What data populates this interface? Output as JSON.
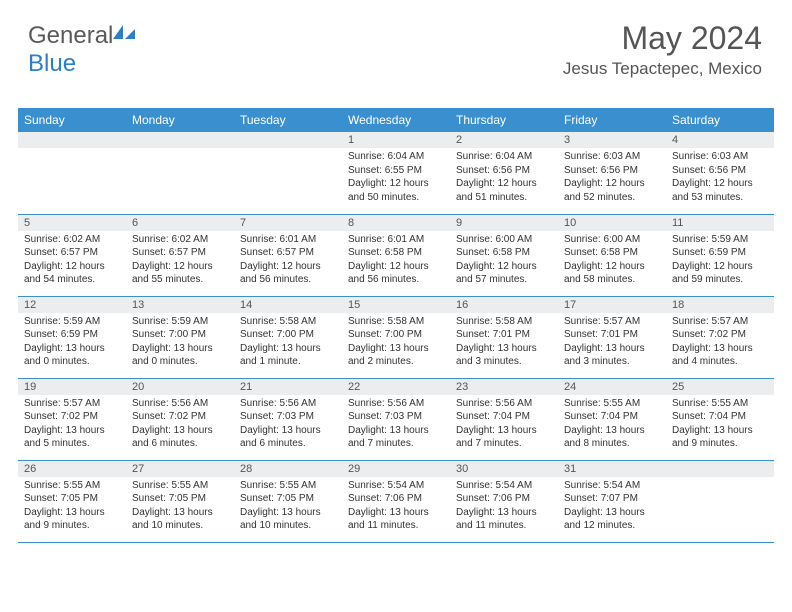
{
  "brand": {
    "part1": "General",
    "part2": "Blue"
  },
  "header": {
    "month_title": "May 2024",
    "location": "Jesus Tepactepec, Mexico"
  },
  "colors": {
    "header_bg": "#3a8fce",
    "header_text": "#ffffff",
    "daynum_bg": "#ebedef",
    "border": "#3a8fce",
    "brand_gray": "#5a5a5a",
    "brand_blue": "#2d7fc1",
    "body_text": "#333333"
  },
  "day_labels": [
    "Sunday",
    "Monday",
    "Tuesday",
    "Wednesday",
    "Thursday",
    "Friday",
    "Saturday"
  ],
  "weeks": [
    [
      null,
      null,
      null,
      {
        "n": "1",
        "sr": "6:04 AM",
        "ss": "6:55 PM",
        "dl": "12 hours and 50 minutes."
      },
      {
        "n": "2",
        "sr": "6:04 AM",
        "ss": "6:56 PM",
        "dl": "12 hours and 51 minutes."
      },
      {
        "n": "3",
        "sr": "6:03 AM",
        "ss": "6:56 PM",
        "dl": "12 hours and 52 minutes."
      },
      {
        "n": "4",
        "sr": "6:03 AM",
        "ss": "6:56 PM",
        "dl": "12 hours and 53 minutes."
      }
    ],
    [
      {
        "n": "5",
        "sr": "6:02 AM",
        "ss": "6:57 PM",
        "dl": "12 hours and 54 minutes."
      },
      {
        "n": "6",
        "sr": "6:02 AM",
        "ss": "6:57 PM",
        "dl": "12 hours and 55 minutes."
      },
      {
        "n": "7",
        "sr": "6:01 AM",
        "ss": "6:57 PM",
        "dl": "12 hours and 56 minutes."
      },
      {
        "n": "8",
        "sr": "6:01 AM",
        "ss": "6:58 PM",
        "dl": "12 hours and 56 minutes."
      },
      {
        "n": "9",
        "sr": "6:00 AM",
        "ss": "6:58 PM",
        "dl": "12 hours and 57 minutes."
      },
      {
        "n": "10",
        "sr": "6:00 AM",
        "ss": "6:58 PM",
        "dl": "12 hours and 58 minutes."
      },
      {
        "n": "11",
        "sr": "5:59 AM",
        "ss": "6:59 PM",
        "dl": "12 hours and 59 minutes."
      }
    ],
    [
      {
        "n": "12",
        "sr": "5:59 AM",
        "ss": "6:59 PM",
        "dl": "13 hours and 0 minutes."
      },
      {
        "n": "13",
        "sr": "5:59 AM",
        "ss": "7:00 PM",
        "dl": "13 hours and 0 minutes."
      },
      {
        "n": "14",
        "sr": "5:58 AM",
        "ss": "7:00 PM",
        "dl": "13 hours and 1 minute."
      },
      {
        "n": "15",
        "sr": "5:58 AM",
        "ss": "7:00 PM",
        "dl": "13 hours and 2 minutes."
      },
      {
        "n": "16",
        "sr": "5:58 AM",
        "ss": "7:01 PM",
        "dl": "13 hours and 3 minutes."
      },
      {
        "n": "17",
        "sr": "5:57 AM",
        "ss": "7:01 PM",
        "dl": "13 hours and 3 minutes."
      },
      {
        "n": "18",
        "sr": "5:57 AM",
        "ss": "7:02 PM",
        "dl": "13 hours and 4 minutes."
      }
    ],
    [
      {
        "n": "19",
        "sr": "5:57 AM",
        "ss": "7:02 PM",
        "dl": "13 hours and 5 minutes."
      },
      {
        "n": "20",
        "sr": "5:56 AM",
        "ss": "7:02 PM",
        "dl": "13 hours and 6 minutes."
      },
      {
        "n": "21",
        "sr": "5:56 AM",
        "ss": "7:03 PM",
        "dl": "13 hours and 6 minutes."
      },
      {
        "n": "22",
        "sr": "5:56 AM",
        "ss": "7:03 PM",
        "dl": "13 hours and 7 minutes."
      },
      {
        "n": "23",
        "sr": "5:56 AM",
        "ss": "7:04 PM",
        "dl": "13 hours and 7 minutes."
      },
      {
        "n": "24",
        "sr": "5:55 AM",
        "ss": "7:04 PM",
        "dl": "13 hours and 8 minutes."
      },
      {
        "n": "25",
        "sr": "5:55 AM",
        "ss": "7:04 PM",
        "dl": "13 hours and 9 minutes."
      }
    ],
    [
      {
        "n": "26",
        "sr": "5:55 AM",
        "ss": "7:05 PM",
        "dl": "13 hours and 9 minutes."
      },
      {
        "n": "27",
        "sr": "5:55 AM",
        "ss": "7:05 PM",
        "dl": "13 hours and 10 minutes."
      },
      {
        "n": "28",
        "sr": "5:55 AM",
        "ss": "7:05 PM",
        "dl": "13 hours and 10 minutes."
      },
      {
        "n": "29",
        "sr": "5:54 AM",
        "ss": "7:06 PM",
        "dl": "13 hours and 11 minutes."
      },
      {
        "n": "30",
        "sr": "5:54 AM",
        "ss": "7:06 PM",
        "dl": "13 hours and 11 minutes."
      },
      {
        "n": "31",
        "sr": "5:54 AM",
        "ss": "7:07 PM",
        "dl": "13 hours and 12 minutes."
      },
      null
    ]
  ],
  "labels": {
    "sunrise": "Sunrise:",
    "sunset": "Sunset:",
    "daylight": "Daylight:"
  }
}
